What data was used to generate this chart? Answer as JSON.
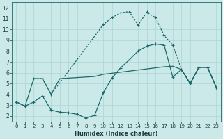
{
  "bg_color": "#cce9e9",
  "grid_color": "#aad4d4",
  "line_color": "#1a6868",
  "xlim": [
    -0.5,
    23.5
  ],
  "ylim": [
    1.5,
    12.5
  ],
  "xticks": [
    0,
    1,
    2,
    3,
    4,
    5,
    6,
    7,
    8,
    9,
    10,
    11,
    12,
    13,
    14,
    15,
    16,
    17,
    18,
    19,
    20,
    21,
    22,
    23
  ],
  "yticks": [
    2,
    3,
    4,
    5,
    6,
    7,
    8,
    9,
    10,
    11,
    12
  ],
  "xlabel": "Humidex (Indice chaleur)",
  "curve_low_x": [
    0,
    1,
    2,
    3,
    4,
    5,
    6,
    7,
    8,
    9,
    10,
    11,
    12,
    13,
    14,
    15,
    16,
    17,
    18,
    19,
    20,
    21,
    22,
    23
  ],
  "curve_low_y": [
    3.3,
    2.9,
    3.3,
    3.85,
    2.55,
    2.35,
    2.3,
    2.15,
    1.8,
    2.05,
    4.15,
    5.5,
    6.45,
    7.2,
    8.0,
    8.45,
    8.65,
    8.55,
    5.6,
    6.3,
    5.0,
    6.5,
    6.5,
    4.65
  ],
  "curve_flat_x": [
    0,
    1,
    2,
    3,
    4,
    5,
    6,
    7,
    8,
    9,
    10,
    11,
    12,
    13,
    14,
    15,
    16,
    17,
    18,
    19,
    20,
    21,
    22,
    23
  ],
  "curve_flat_y": [
    3.3,
    2.9,
    5.45,
    5.45,
    4.0,
    5.45,
    5.5,
    5.55,
    5.6,
    5.65,
    5.85,
    5.95,
    6.05,
    6.15,
    6.25,
    6.35,
    6.45,
    6.55,
    6.6,
    6.3,
    5.0,
    6.5,
    6.5,
    4.65
  ],
  "curve_high_x": [
    2,
    3,
    4,
    10,
    11,
    12,
    13,
    14,
    15,
    16,
    17,
    18,
    19,
    20,
    21,
    22,
    23
  ],
  "curve_high_y": [
    5.45,
    5.45,
    4.0,
    10.45,
    11.1,
    11.55,
    11.65,
    10.4,
    11.6,
    11.1,
    9.45,
    8.55,
    6.3,
    5.0,
    6.5,
    6.5,
    4.65
  ]
}
